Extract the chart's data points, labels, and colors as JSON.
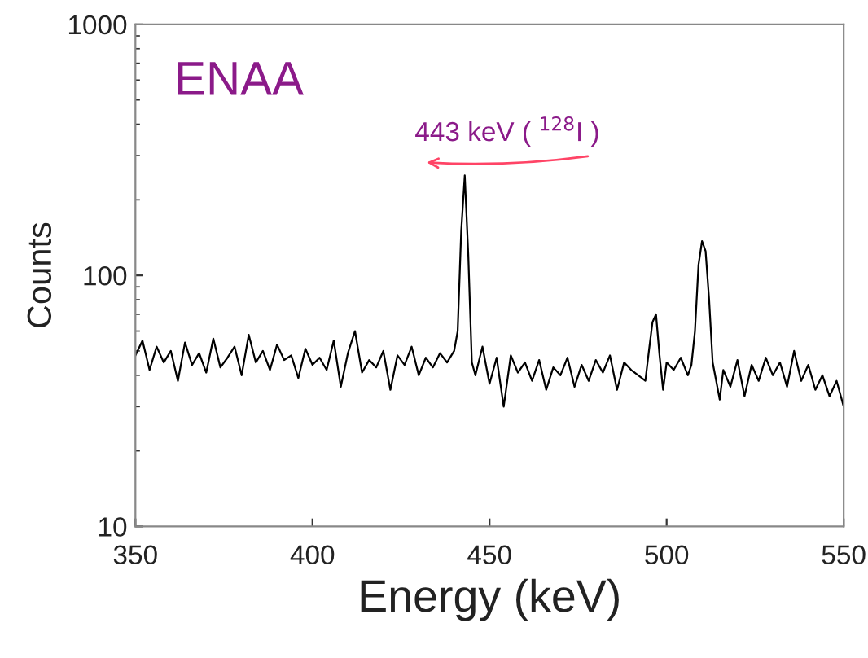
{
  "chart_data": {
    "type": "line",
    "xlabel": "Energy (keV)",
    "ylabel": "Counts",
    "log": "y",
    "xlim": [
      350,
      550
    ],
    "xticks": [
      350,
      400,
      450,
      500,
      550
    ],
    "ylim": [
      10,
      1000
    ],
    "yticks": [
      10,
      100,
      1000
    ],
    "grid": false,
    "legend": false,
    "marker": "none",
    "line_style": "solid",
    "annotations": [
      "ENAA",
      {
        "text": "443 keV ( $^{128}$I )",
        "x": 443,
        "y": 250
      }
    ],
    "series": [
      {
        "color": "#000000",
        "x": [
          350,
          352,
          354,
          356,
          358,
          360,
          362,
          364,
          366,
          368,
          370,
          372,
          374,
          376,
          378,
          380,
          382,
          384,
          386,
          388,
          390,
          392,
          394,
          396,
          398,
          400,
          402,
          404,
          406,
          408,
          410,
          412,
          414,
          416,
          418,
          420,
          422,
          424,
          426,
          428,
          430,
          432,
          434,
          436,
          438,
          440,
          441,
          442,
          443,
          444,
          445,
          446,
          448,
          450,
          452,
          454,
          456,
          458,
          460,
          462,
          464,
          466,
          468,
          470,
          472,
          474,
          476,
          478,
          480,
          482,
          484,
          486,
          488,
          490,
          492,
          494,
          495,
          496,
          497,
          498,
          499,
          500,
          502,
          504,
          506,
          507,
          508,
          509,
          510,
          511,
          512,
          513,
          514,
          515,
          516,
          518,
          520,
          522,
          524,
          526,
          528,
          530,
          532,
          534,
          536,
          538,
          540,
          542,
          544,
          546,
          548,
          550
        ],
        "values": [
          48,
          55,
          42,
          52,
          45,
          50,
          38,
          54,
          44,
          49,
          41,
          56,
          43,
          47,
          52,
          40,
          58,
          45,
          50,
          42,
          53,
          46,
          48,
          39,
          51,
          44,
          47,
          42,
          55,
          36,
          49,
          60,
          41,
          46,
          43,
          50,
          35,
          48,
          44,
          52,
          40,
          47,
          43,
          49,
          45,
          50,
          60,
          150,
          250,
          120,
          45,
          40,
          52,
          37,
          47,
          30,
          48,
          41,
          45,
          38,
          46,
          35,
          43,
          40,
          47,
          36,
          44,
          38,
          46,
          41,
          48,
          35,
          45,
          42,
          40,
          38,
          50,
          65,
          70,
          48,
          35,
          45,
          42,
          47,
          40,
          44,
          60,
          110,
          137,
          125,
          80,
          45,
          38,
          32,
          42,
          36,
          46,
          33,
          44,
          38,
          47,
          40,
          45,
          36,
          50,
          38,
          44,
          35,
          40,
          33,
          38,
          30
        ]
      }
    ]
  }
}
